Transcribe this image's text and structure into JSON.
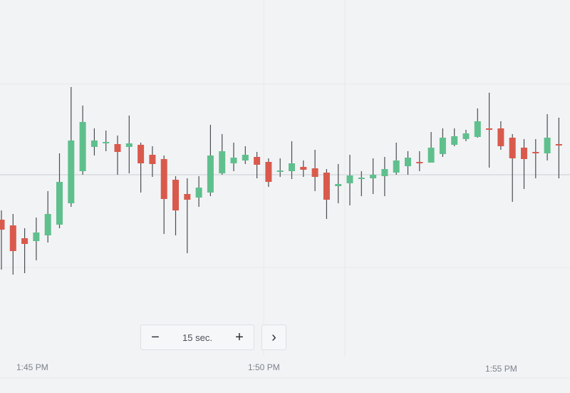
{
  "chart_data": {
    "type": "candlestick",
    "up_color": "#5fc08d",
    "down_color": "#d95a4c",
    "ylim": [
      0,
      551
    ],
    "candles": [
      {
        "o": 243,
        "h": 256,
        "l": 173,
        "c": 229
      },
      {
        "o": 235,
        "h": 251,
        "l": 166,
        "c": 199
      },
      {
        "o": 217,
        "h": 231,
        "l": 168,
        "c": 209
      },
      {
        "o": 213,
        "h": 246,
        "l": 186,
        "c": 225
      },
      {
        "o": 221,
        "h": 283,
        "l": 211,
        "c": 251
      },
      {
        "o": 236,
        "h": 336,
        "l": 231,
        "c": 296
      },
      {
        "o": 266,
        "h": 429,
        "l": 261,
        "c": 354
      },
      {
        "o": 311,
        "h": 403,
        "l": 306,
        "c": 380
      },
      {
        "o": 345,
        "h": 371,
        "l": 333,
        "c": 354
      },
      {
        "o": 350,
        "h": 368,
        "l": 339,
        "c": 352
      },
      {
        "o": 349,
        "h": 361,
        "l": 306,
        "c": 338
      },
      {
        "o": 345,
        "h": 389,
        "l": 308,
        "c": 350
      },
      {
        "o": 348,
        "h": 351,
        "l": 281,
        "c": 322
      },
      {
        "o": 334,
        "h": 346,
        "l": 303,
        "c": 321
      },
      {
        "o": 328,
        "h": 333,
        "l": 223,
        "c": 272
      },
      {
        "o": 299,
        "h": 304,
        "l": 221,
        "c": 256
      },
      {
        "o": 279,
        "h": 301,
        "l": 196,
        "c": 271
      },
      {
        "o": 274,
        "h": 304,
        "l": 261,
        "c": 288
      },
      {
        "o": 281,
        "h": 376,
        "l": 276,
        "c": 333
      },
      {
        "o": 308,
        "h": 363,
        "l": 306,
        "c": 339
      },
      {
        "o": 322,
        "h": 351,
        "l": 311,
        "c": 330
      },
      {
        "o": 326,
        "h": 346,
        "l": 321,
        "c": 334
      },
      {
        "o": 331,
        "h": 338,
        "l": 301,
        "c": 320
      },
      {
        "o": 324,
        "h": 329,
        "l": 289,
        "c": 296
      },
      {
        "o": 310,
        "h": 329,
        "l": 303,
        "c": 312
      },
      {
        "o": 311,
        "h": 353,
        "l": 300,
        "c": 322
      },
      {
        "o": 317,
        "h": 326,
        "l": 303,
        "c": 313
      },
      {
        "o": 315,
        "h": 341,
        "l": 283,
        "c": 303
      },
      {
        "o": 309,
        "h": 314,
        "l": 244,
        "c": 271
      },
      {
        "o": 290,
        "h": 321,
        "l": 266,
        "c": 293
      },
      {
        "o": 294,
        "h": 334,
        "l": 263,
        "c": 305
      },
      {
        "o": 300,
        "h": 311,
        "l": 276,
        "c": 302
      },
      {
        "o": 301,
        "h": 329,
        "l": 279,
        "c": 306
      },
      {
        "o": 304,
        "h": 331,
        "l": 276,
        "c": 314
      },
      {
        "o": 309,
        "h": 351,
        "l": 306,
        "c": 326
      },
      {
        "o": 318,
        "h": 339,
        "l": 306,
        "c": 330
      },
      {
        "o": 324,
        "h": 339,
        "l": 311,
        "c": 322
      },
      {
        "o": 323,
        "h": 366,
        "l": 323,
        "c": 344
      },
      {
        "o": 335,
        "h": 371,
        "l": 331,
        "c": 358
      },
      {
        "o": 348,
        "h": 371,
        "l": 346,
        "c": 360
      },
      {
        "o": 356,
        "h": 369,
        "l": 353,
        "c": 364
      },
      {
        "o": 359,
        "h": 399,
        "l": 358,
        "c": 381
      },
      {
        "o": 371,
        "h": 421,
        "l": 316,
        "c": 369
      },
      {
        "o": 371,
        "h": 381,
        "l": 341,
        "c": 346
      },
      {
        "o": 358,
        "h": 363,
        "l": 268,
        "c": 329
      },
      {
        "o": 344,
        "h": 356,
        "l": 286,
        "c": 328
      },
      {
        "o": 338,
        "h": 356,
        "l": 301,
        "c": 336
      },
      {
        "o": 336,
        "h": 391,
        "l": 326,
        "c": 358
      },
      {
        "o": 349,
        "h": 386,
        "l": 301,
        "c": 347
      }
    ],
    "x_labels": [
      "1:45 PM",
      "1:50 PM",
      "1:55 PM"
    ]
  },
  "controls": {
    "minus": "−",
    "interval": "15 sec.",
    "plus": "+",
    "next": "›"
  }
}
